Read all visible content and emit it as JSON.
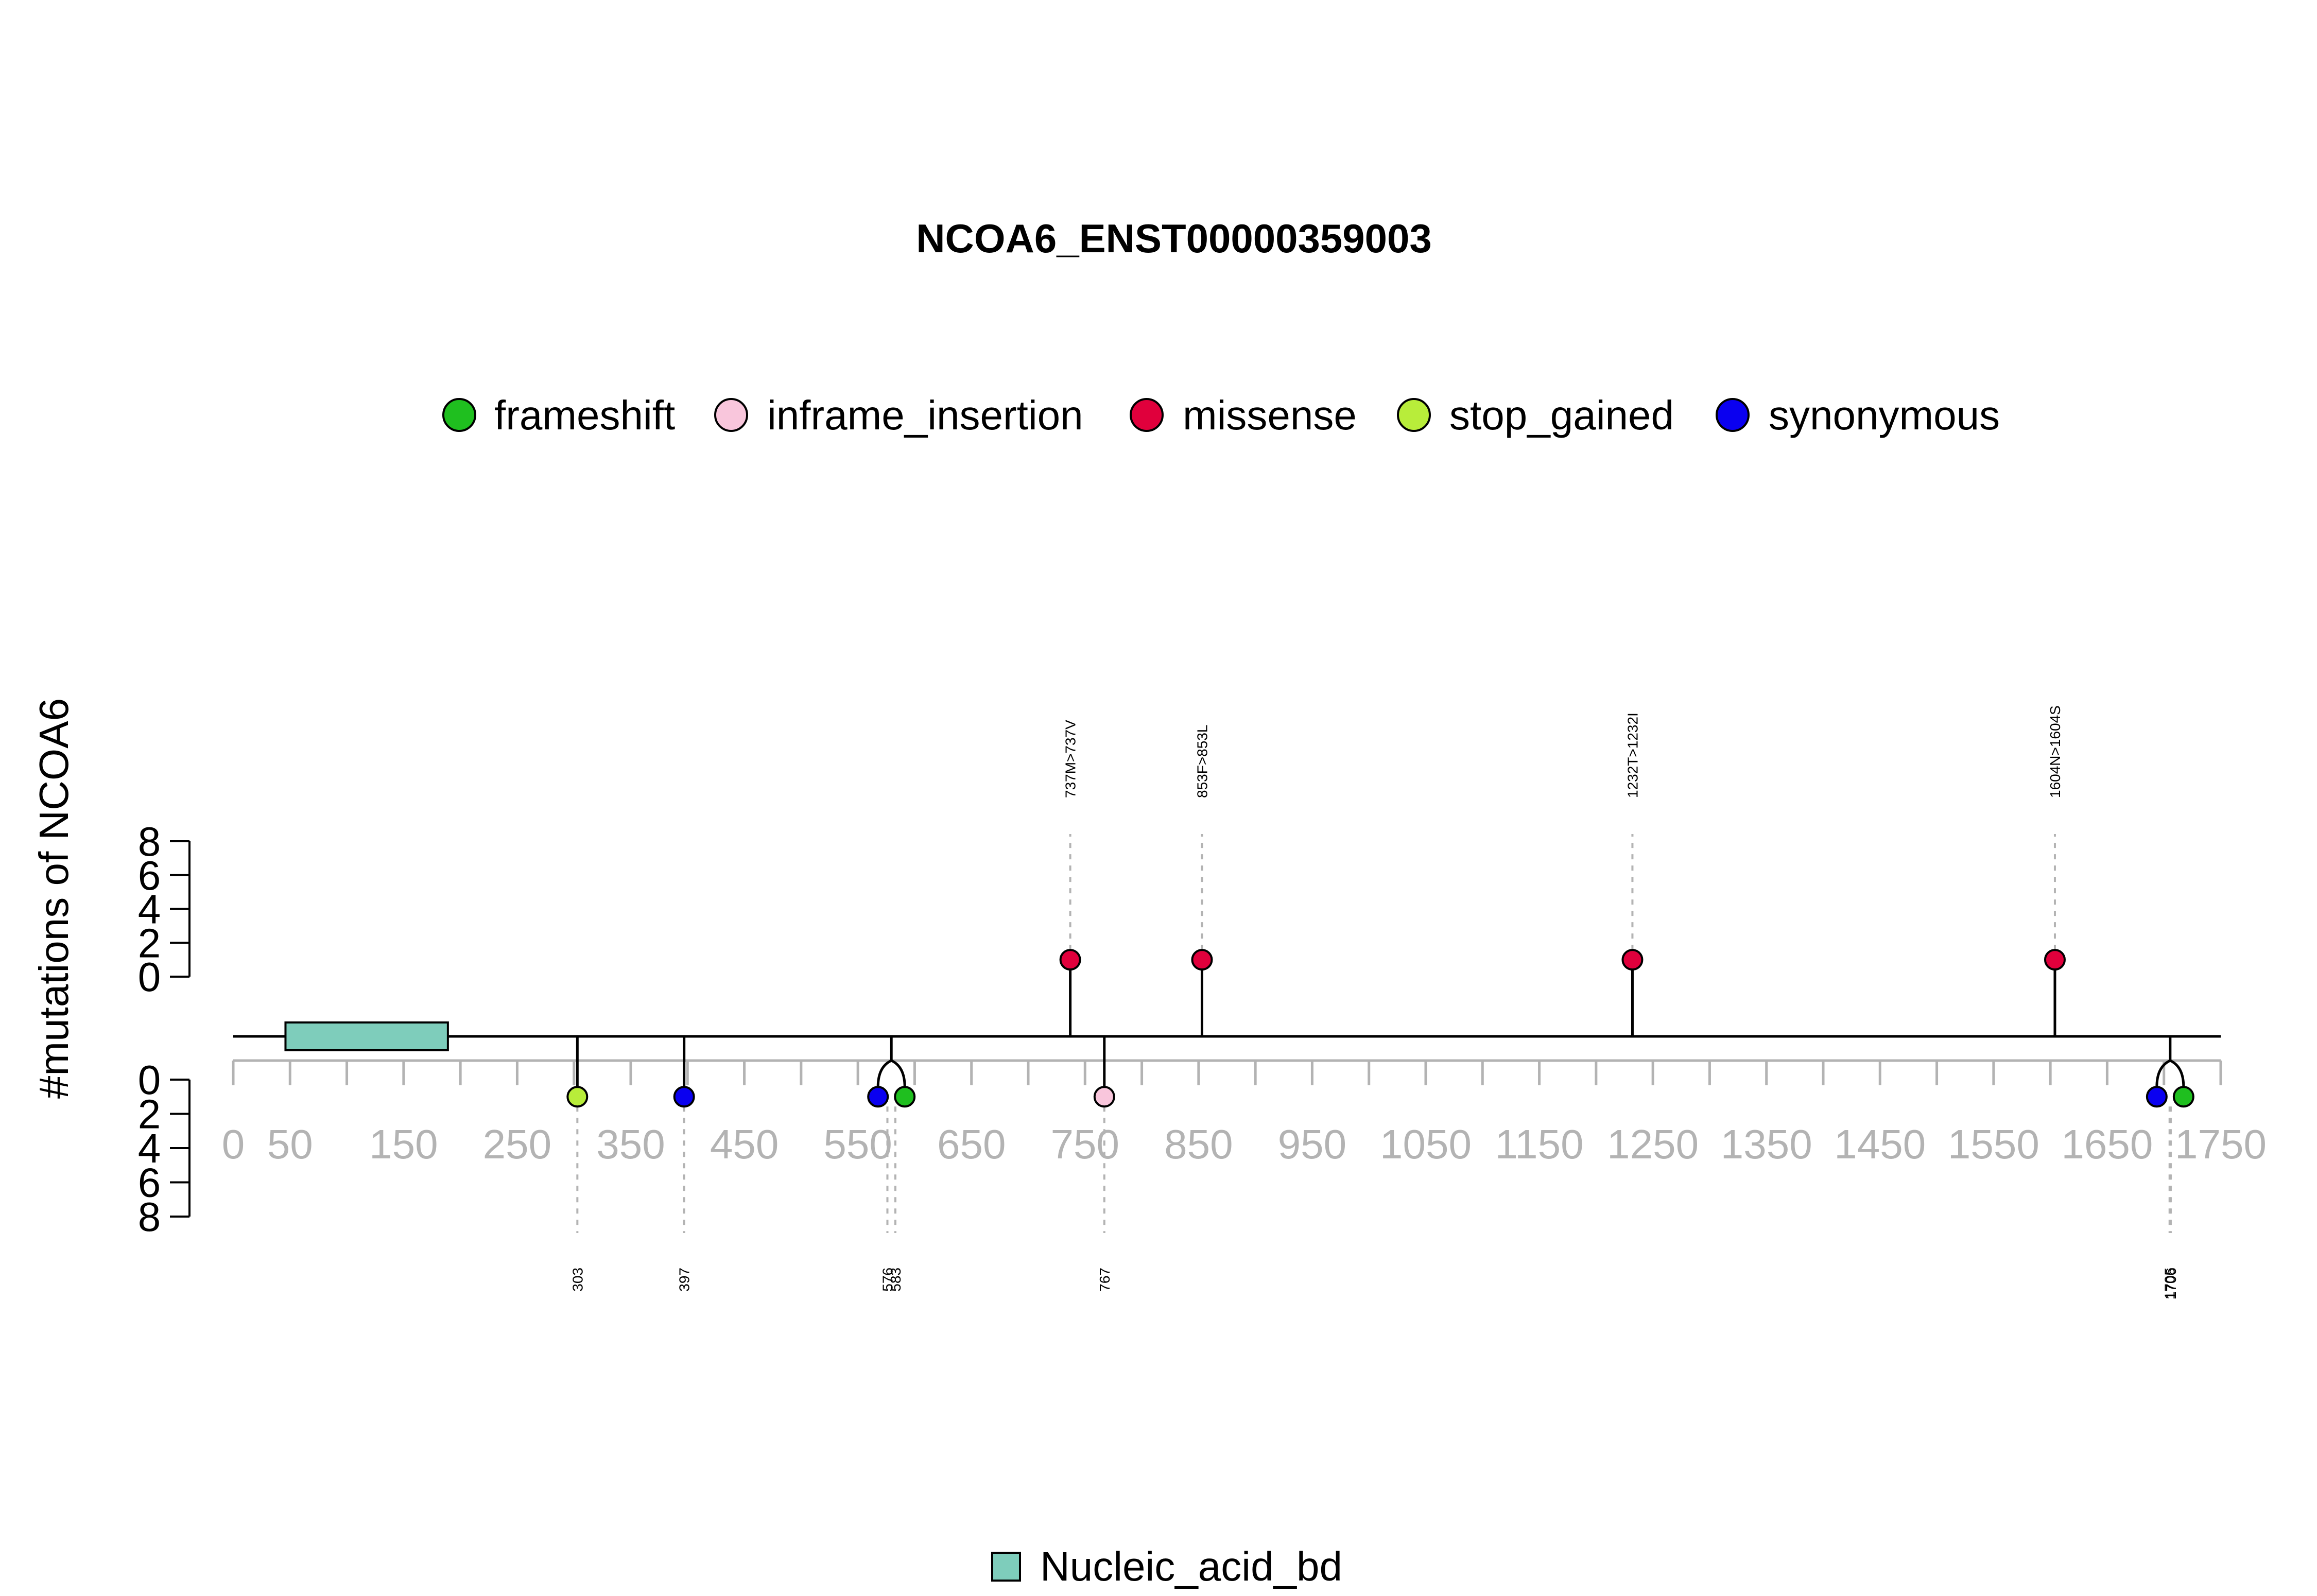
{
  "chart_data": {
    "type": "lollipop",
    "title": "NCOA6_ENST00000359003",
    "ylabel": "#mutations of NCOA6",
    "xlim": [
      0,
      1750
    ],
    "x_ticks": [
      0,
      50,
      150,
      250,
      350,
      450,
      550,
      650,
      750,
      850,
      950,
      1050,
      1150,
      1250,
      1350,
      1450,
      1550,
      1650,
      1750
    ],
    "y_ticks": [
      0,
      2,
      4,
      6,
      8
    ],
    "legend": {
      "placement": "top",
      "entries": [
        {
          "name": "frameshift",
          "color": "#1fbf1f"
        },
        {
          "name": "inframe_insertion",
          "color": "#f9c6dc"
        },
        {
          "name": "missense",
          "color": "#e0003c"
        },
        {
          "name": "stop_gained",
          "color": "#b8ed3a"
        },
        {
          "name": "synonymous",
          "color": "#0a00f0"
        }
      ]
    },
    "domains": [
      {
        "name": "Nucleic_acid_bd",
        "start": 46,
        "end": 189,
        "color": "#7ecdbb"
      }
    ],
    "mutations_above": [
      {
        "pos": 737,
        "label": "737M>737V",
        "type": "missense",
        "count": 1
      },
      {
        "pos": 853,
        "label": "853F>853L",
        "type": "missense",
        "count": 1
      },
      {
        "pos": 1232,
        "label": "1232T>1232I",
        "type": "missense",
        "count": 1
      },
      {
        "pos": 1604,
        "label": "1604N>1604S",
        "type": "missense",
        "count": 1
      }
    ],
    "mutations_below": [
      {
        "pos": 303,
        "label": "303",
        "type": "stop_gained",
        "count": 1
      },
      {
        "pos": 397,
        "label": "397",
        "type": "synonymous",
        "count": 1
      },
      {
        "pos": 576,
        "label": "576",
        "type": "synonymous",
        "count": 1
      },
      {
        "pos": 583,
        "label": "583",
        "type": "frameshift",
        "count": 1
      },
      {
        "pos": 767,
        "label": "767",
        "type": "inframe_insertion",
        "count": 1
      },
      {
        "pos": 1705,
        "label": "1705",
        "type": "synonymous",
        "count": 1
      },
      {
        "pos": 1706,
        "label": "1706",
        "type": "frameshift",
        "count": 1
      }
    ]
  }
}
